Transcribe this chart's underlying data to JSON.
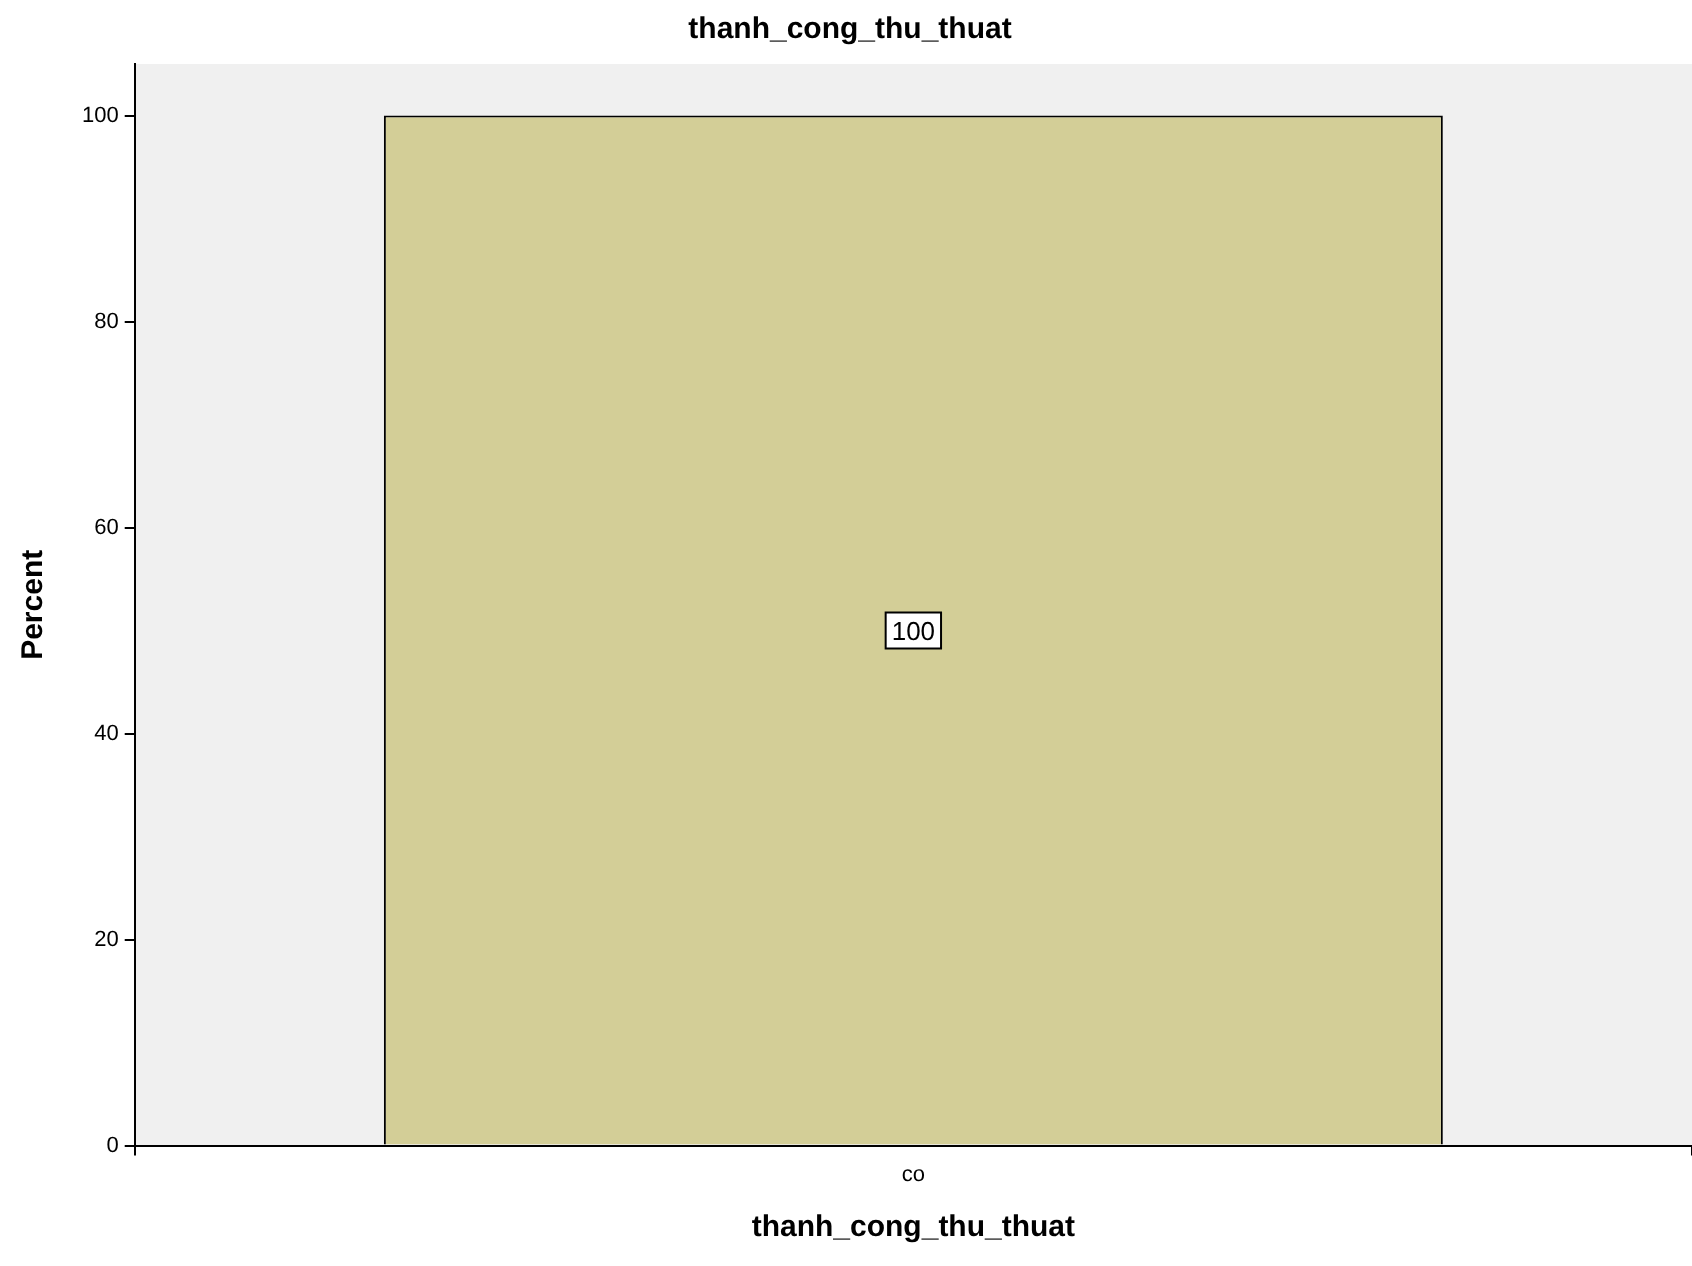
{
  "chart_data": {
    "type": "bar",
    "title": "thanh_cong_thu_thuat",
    "xlabel": "thanh_cong_thu_thuat",
    "ylabel": "Percent",
    "categories": [
      "co"
    ],
    "values": [
      100
    ],
    "color": "#d3ce97",
    "ylim": [
      0,
      105
    ],
    "yticks": [
      0,
      20,
      40,
      60,
      80,
      100
    ],
    "data_labels": true,
    "grid": false,
    "legend": false
  }
}
